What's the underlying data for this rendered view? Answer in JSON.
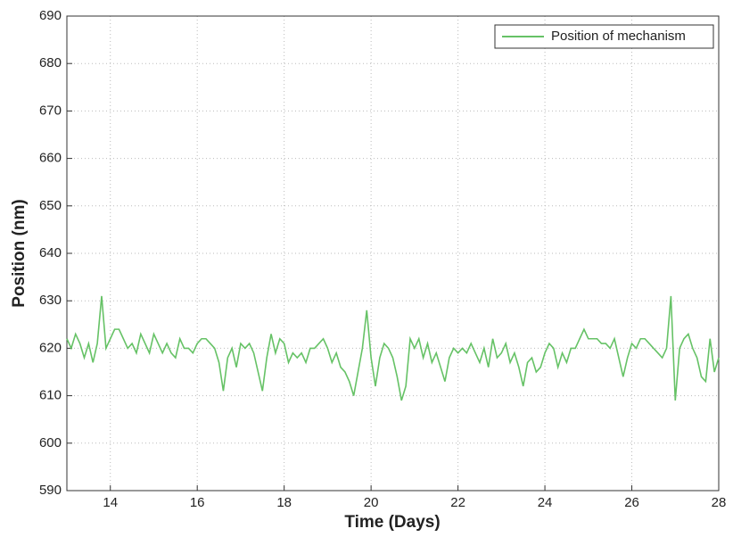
{
  "chart_data": {
    "type": "line",
    "xlabel": "Time (Days)",
    "ylabel": "Position (nm)",
    "x": [
      13.0,
      13.1,
      13.2,
      13.3,
      13.4,
      13.5,
      13.6,
      13.7,
      13.8,
      13.9,
      14.0,
      14.1,
      14.2,
      14.3,
      14.4,
      14.5,
      14.6,
      14.7,
      14.8,
      14.9,
      15.0,
      15.1,
      15.2,
      15.3,
      15.4,
      15.5,
      15.6,
      15.7,
      15.8,
      15.9,
      16.0,
      16.1,
      16.2,
      16.3,
      16.4,
      16.5,
      16.6,
      16.7,
      16.8,
      16.9,
      17.0,
      17.1,
      17.2,
      17.3,
      17.4,
      17.5,
      17.6,
      17.7,
      17.8,
      17.9,
      18.0,
      18.1,
      18.2,
      18.3,
      18.4,
      18.5,
      18.6,
      18.7,
      18.8,
      18.9,
      19.0,
      19.1,
      19.2,
      19.3,
      19.4,
      19.5,
      19.6,
      19.7,
      19.8,
      19.9,
      20.0,
      20.1,
      20.2,
      20.3,
      20.4,
      20.5,
      20.6,
      20.7,
      20.8,
      20.9,
      21.0,
      21.1,
      21.2,
      21.3,
      21.4,
      21.5,
      21.6,
      21.7,
      21.8,
      21.9,
      22.0,
      22.1,
      22.2,
      22.3,
      22.4,
      22.5,
      22.6,
      22.7,
      22.8,
      22.9,
      23.0,
      23.1,
      23.2,
      23.3,
      23.4,
      23.5,
      23.6,
      23.7,
      23.8,
      23.9,
      24.0,
      24.1,
      24.2,
      24.3,
      24.4,
      24.5,
      24.6,
      24.7,
      24.8,
      24.9,
      25.0,
      25.1,
      25.2,
      25.3,
      25.4,
      25.5,
      25.6,
      25.7,
      25.8,
      25.9,
      26.0,
      26.1,
      26.2,
      26.3,
      26.4,
      26.5,
      26.6,
      26.7,
      26.8,
      26.9,
      27.0,
      27.1,
      27.2,
      27.3,
      27.4,
      27.5,
      27.6,
      27.7,
      27.8,
      27.9,
      28.0
    ],
    "series": [
      {
        "name": "Position of mechanism",
        "color": "#66c266",
        "values": [
          622,
          620,
          623,
          621,
          618,
          621,
          617,
          621,
          631,
          620,
          622,
          624,
          624,
          622,
          620,
          621,
          619,
          623,
          621,
          619,
          623,
          621,
          619,
          621,
          619,
          618,
          622,
          620,
          620,
          619,
          621,
          622,
          622,
          621,
          620,
          617,
          611,
          618,
          620,
          616,
          621,
          620,
          621,
          619,
          615,
          611,
          618,
          623,
          619,
          622,
          621,
          617,
          619,
          618,
          619,
          617,
          620,
          620,
          621,
          622,
          620,
          617,
          619,
          616,
          615,
          613,
          610,
          615,
          620,
          628,
          618,
          612,
          618,
          621,
          620,
          618,
          614,
          609,
          612,
          622,
          620,
          622,
          618,
          621,
          617,
          619,
          616,
          613,
          618,
          620,
          619,
          620,
          619,
          621,
          619,
          617,
          620,
          616,
          622,
          618,
          619,
          621,
          617,
          619,
          616,
          612,
          617,
          618,
          615,
          616,
          619,
          621,
          620,
          616,
          619,
          617,
          620,
          620,
          622,
          624,
          622,
          622,
          622,
          621,
          621,
          620,
          622,
          618,
          614,
          618,
          621,
          620,
          622,
          622,
          621,
          620,
          619,
          618,
          620,
          631,
          609,
          620,
          622,
          623,
          620,
          618,
          614,
          613,
          622,
          615,
          618
        ]
      }
    ],
    "xlim": [
      13,
      28
    ],
    "xticks": [
      14,
      16,
      18,
      20,
      22,
      24,
      26,
      28
    ],
    "ylim": [
      590,
      690
    ],
    "yticks": [
      590,
      600,
      610,
      620,
      630,
      640,
      650,
      660,
      670,
      680,
      690
    ],
    "grid": true,
    "legend": "upper right"
  }
}
